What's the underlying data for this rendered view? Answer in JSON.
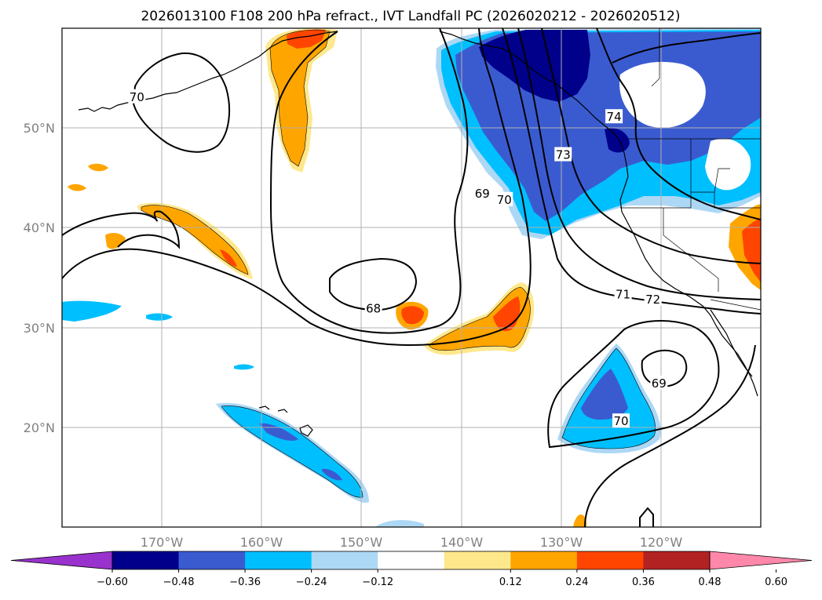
{
  "title": "2026013100 F108 200 hPa refract., IVT Landfall PC (2026020212 - 2026020512)",
  "map": {
    "lon_range": [
      -180,
      -110
    ],
    "lat_range": [
      10,
      60
    ],
    "lon_ticks": [
      {
        "value": -170,
        "label": "170°W"
      },
      {
        "value": -160,
        "label": "160°W"
      },
      {
        "value": -150,
        "label": "150°W"
      },
      {
        "value": -140,
        "label": "140°W"
      },
      {
        "value": -130,
        "label": "130°W"
      },
      {
        "value": -120,
        "label": "120°W"
      }
    ],
    "lat_ticks": [
      {
        "value": 50,
        "label": "50°N"
      },
      {
        "value": 40,
        "label": "40°N"
      },
      {
        "value": 30,
        "label": "30°N"
      },
      {
        "value": 20,
        "label": "20°N"
      }
    ],
    "grid": true,
    "contour_labels": [
      {
        "text": "70",
        "lon": -172.5,
        "lat": 53.1
      },
      {
        "text": "68",
        "lon": -148.8,
        "lat": 31.9
      },
      {
        "text": "69",
        "lon": -137.9,
        "lat": 43.4
      },
      {
        "text": "70",
        "lon": -135.7,
        "lat": 42.8
      },
      {
        "text": "73",
        "lon": -129.8,
        "lat": 47.3
      },
      {
        "text": "74",
        "lon": -124.7,
        "lat": 51.1
      },
      {
        "text": "71",
        "lon": -123.8,
        "lat": 33.3
      },
      {
        "text": "72",
        "lon": -120.8,
        "lat": 32.8
      },
      {
        "text": "69",
        "lon": -120.2,
        "lat": 24.4
      },
      {
        "text": "70",
        "lon": -124.0,
        "lat": 20.6
      }
    ]
  },
  "colorbar": {
    "colors": [
      "#9932cc",
      "#00008b",
      "#3a5bd0",
      "#00bfff",
      "#add8f5",
      "#ffffff",
      "#ffe88c",
      "#ffa500",
      "#ff4500",
      "#b22222",
      "#ff88aa"
    ],
    "tick_labels": [
      "−0.60",
      "−0.48",
      "−0.36",
      "−0.24",
      "−0.12",
      "0.12",
      "0.24",
      "0.36",
      "0.48",
      "0.60"
    ],
    "extend": "both"
  },
  "colors": {
    "land_coast": "#000000",
    "contour": "#000000",
    "grid": "#b0b0b0"
  }
}
